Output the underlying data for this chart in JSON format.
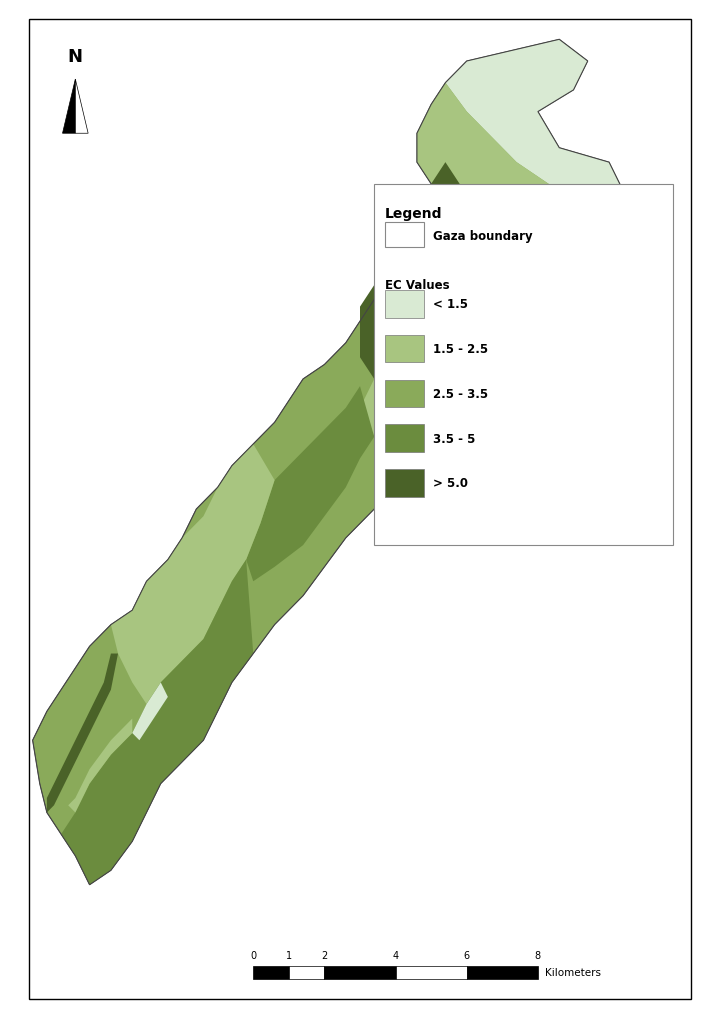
{
  "title": "",
  "background_color": "#ffffff",
  "map_border_color": "#000000",
  "legend_title": "Legend",
  "legend_boundary_label": "Gaza boundary",
  "legend_ec_label": "EC Values",
  "legend_entries": [
    "< 1.5",
    "1.5 - 2.5",
    "2.5 - 3.5",
    "3.5 - 5",
    "> 5.0"
  ],
  "legend_colors": [
    "#d9ead3",
    "#a8c580",
    "#8aaa5a",
    "#6b8c3e",
    "#4a6228"
  ],
  "scalebar_ticks": [
    "0",
    "1",
    "2",
    "4",
    "6",
    "8"
  ],
  "scalebar_label": "Kilometers",
  "c1": "#d9ead3",
  "c2": "#a8c580",
  "c3": "#8aaa5a",
  "c4": "#6b8c3e",
  "c5": "#4a6228"
}
